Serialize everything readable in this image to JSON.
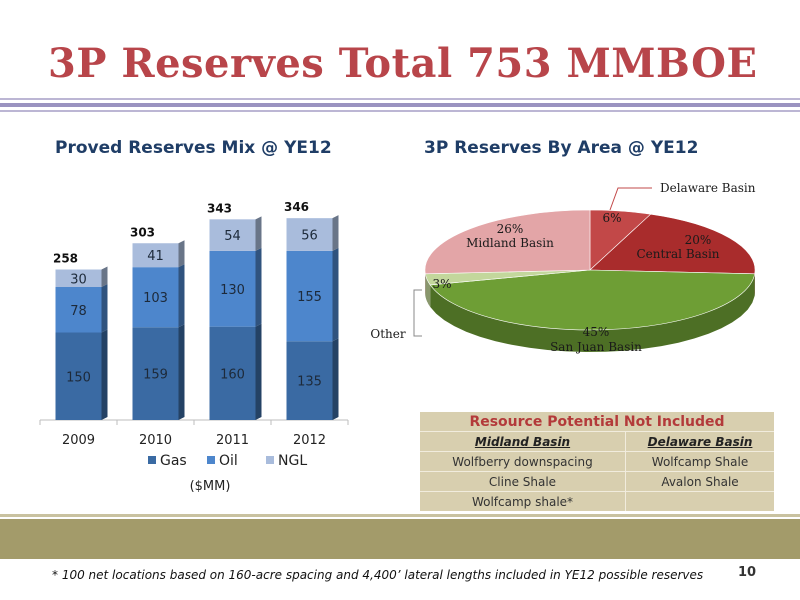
{
  "slide": {
    "title": "3P Reserves Total 753 MMBOE",
    "footnote": "* 100 net locations based on 160-acre spacing and 4,400’ lateral lengths included in YE12 possible reserves",
    "page_number": "10"
  },
  "colors": {
    "gas": "#3a6aa3",
    "oil": "#4d86cc",
    "ngl": "#a9bcdc",
    "title": "#b8454a",
    "table_bg": "#d8cfaf",
    "band": "#a39b6a"
  },
  "chart_data": [
    {
      "type": "bar",
      "title": "Proved Reserves Mix @ YE12",
      "categories": [
        "2009",
        "2010",
        "2011",
        "2012"
      ],
      "series": [
        {
          "name": "Gas",
          "values": [
            150,
            159,
            160,
            135
          ]
        },
        {
          "name": "Oil",
          "values": [
            78,
            103,
            130,
            155
          ]
        },
        {
          "name": "NGL",
          "values": [
            30,
            41,
            54,
            56
          ]
        }
      ],
      "totals": [
        "258",
        "303",
        "343",
        "346"
      ],
      "unit_label": "($MM)",
      "ylim": [
        0,
        360
      ],
      "legend_position": "bottom",
      "grid": false,
      "stacked": true
    },
    {
      "type": "pie",
      "title": "3P Reserves By Area @ YE12",
      "slices": [
        {
          "name": "Delaware Basin",
          "value": 6,
          "label": "6%",
          "color": "#c24848"
        },
        {
          "name": "Central Basin",
          "value": 20,
          "label": "20%",
          "color": "#a92c2c"
        },
        {
          "name": "San Juan Basin",
          "value": 45,
          "label": "45%",
          "color": "#6e9e35"
        },
        {
          "name": "Other",
          "value": 3,
          "label": "3%",
          "color": "#c3d79c"
        },
        {
          "name": "Midland Basin",
          "value": 26,
          "label": "26%",
          "color": "#e3a5a7"
        }
      ],
      "style": "3d"
    }
  ],
  "resource_table": {
    "title": "Resource Potential Not Included",
    "headers": [
      "Midland Basin",
      "Delaware Basin"
    ],
    "rows": [
      [
        "Wolfberry downspacing",
        "Wolfcamp Shale"
      ],
      [
        "Cline Shale",
        "Avalon Shale"
      ],
      [
        "Wolfcamp shale*",
        ""
      ]
    ]
  }
}
